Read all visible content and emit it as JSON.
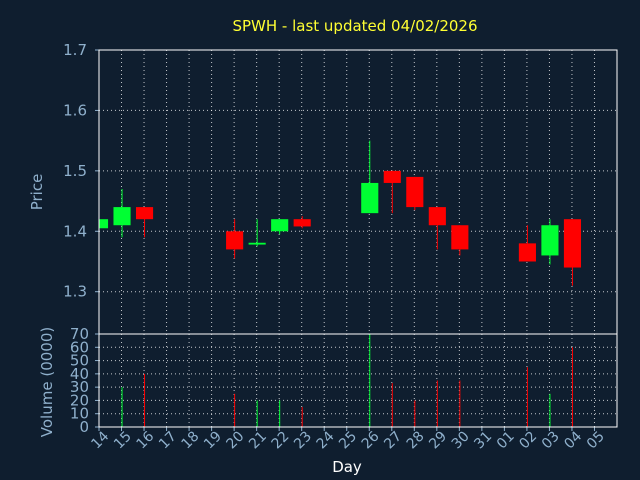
{
  "chart_data": {
    "type": "candlestick",
    "title": "SPWH - last updated 04/02/2026",
    "price_panel": {
      "ylabel": "Price",
      "ylim": [
        1.23,
        1.7
      ],
      "yticks": [
        1.3,
        1.4,
        1.5,
        1.6,
        1.7
      ]
    },
    "volume_panel": {
      "ylabel": "Volume (0000)",
      "ylim": [
        0,
        70
      ],
      "yticks": [
        0,
        10,
        20,
        30,
        40,
        50,
        60,
        70
      ]
    },
    "xlabel": "Day",
    "x_ticks": [
      "14",
      "15",
      "16",
      "17",
      "18",
      "19",
      "20",
      "21",
      "22",
      "23",
      "24",
      "25",
      "26",
      "27",
      "28",
      "29",
      "30",
      "31",
      "01",
      "02",
      "03",
      "04",
      "05"
    ],
    "grid": true,
    "colors": {
      "up": "#00ff33",
      "down": "#ff0000",
      "title": "#ffff33",
      "background": "#0f1e2f"
    },
    "candles": [
      {
        "x": "14",
        "open": 1.405,
        "high": 1.42,
        "low": 1.405,
        "close": 1.42,
        "volume": 0
      },
      {
        "x": "15",
        "open": 1.41,
        "high": 1.47,
        "low": 1.39,
        "close": 1.44,
        "volume": 30
      },
      {
        "x": "16",
        "open": 1.44,
        "high": 1.44,
        "low": 1.39,
        "close": 1.42,
        "volume": 40
      },
      {
        "x": "20",
        "open": 1.4,
        "high": 1.42,
        "low": 1.355,
        "close": 1.37,
        "volume": 25
      },
      {
        "x": "21",
        "open": 1.378,
        "high": 1.42,
        "low": 1.375,
        "close": 1.381,
        "volume": 20
      },
      {
        "x": "22",
        "open": 1.4,
        "high": 1.42,
        "low": 1.395,
        "close": 1.42,
        "volume": 20
      },
      {
        "x": "23",
        "open": 1.42,
        "high": 1.425,
        "low": 1.405,
        "close": 1.408,
        "volume": 15
      },
      {
        "x": "26",
        "open": 1.43,
        "high": 1.55,
        "low": 1.43,
        "close": 1.48,
        "volume": 70
      },
      {
        "x": "27",
        "open": 1.5,
        "high": 1.5,
        "low": 1.43,
        "close": 1.48,
        "volume": 33
      },
      {
        "x": "28",
        "open": 1.49,
        "high": 1.49,
        "low": 1.435,
        "close": 1.44,
        "volume": 20
      },
      {
        "x": "29",
        "open": 1.44,
        "high": 1.44,
        "low": 1.37,
        "close": 1.41,
        "volume": 35
      },
      {
        "x": "30",
        "open": 1.41,
        "high": 1.41,
        "low": 1.36,
        "close": 1.37,
        "volume": 35
      },
      {
        "x": "02",
        "open": 1.38,
        "high": 1.41,
        "low": 1.35,
        "close": 1.35,
        "volume": 45
      },
      {
        "x": "03",
        "open": 1.36,
        "high": 1.42,
        "low": 1.345,
        "close": 1.41,
        "volume": 25
      },
      {
        "x": "04",
        "open": 1.42,
        "high": 1.42,
        "low": 1.31,
        "close": 1.34,
        "volume": 60
      }
    ]
  }
}
